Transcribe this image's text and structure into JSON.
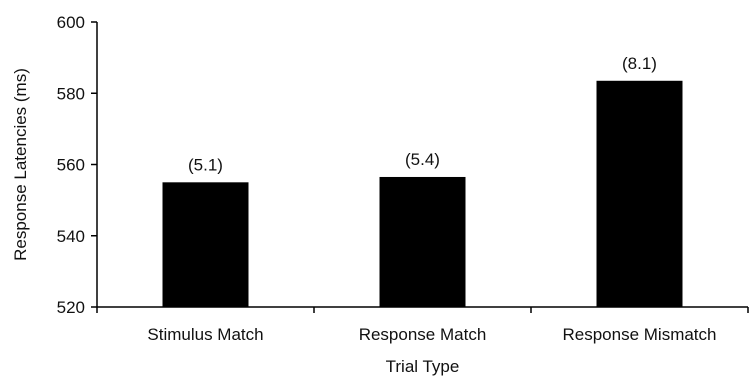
{
  "chart_data": {
    "type": "bar",
    "xlabel": "Trial Type",
    "ylabel": "Response Latencies (ms)",
    "ylim": [
      520,
      600
    ],
    "yticks": [
      "520",
      "540",
      "560",
      "580",
      "600"
    ],
    "categories": [
      "Stimulus Match",
      "Response Match",
      "Response Mismatch"
    ],
    "values": [
      555,
      556.5,
      583.5
    ],
    "data_labels": [
      "(5.1)",
      "(5.4)",
      "(8.1)"
    ],
    "bar_color": "#000000",
    "grid": false,
    "legend": "none"
  }
}
